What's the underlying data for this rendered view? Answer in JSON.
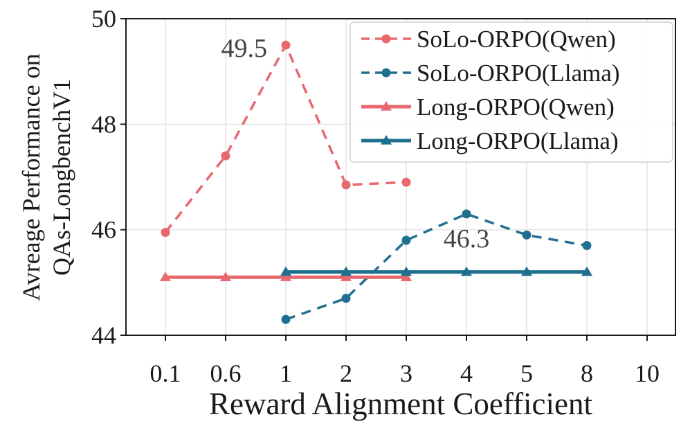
{
  "chart_data": {
    "type": "line",
    "title": "",
    "xlabel": "Reward Alignment Coefficient",
    "ylabel": [
      "Avreage Performance on",
      "QAs-LongbenchV1"
    ],
    "categories": [
      "0.1",
      "0.6",
      "1",
      "2",
      "3",
      "4",
      "5",
      "8",
      "10"
    ],
    "yticks": [
      "44",
      "46",
      "48",
      "50"
    ],
    "ylim": [
      44,
      50
    ],
    "grid": true,
    "legend_position": "top-right",
    "series": [
      {
        "name": "SoLo-ORPO(Qwen)",
        "style": "dashed",
        "marker": "circle",
        "color": "#e8686e",
        "x": [
          "0.1",
          "0.6",
          "1",
          "2",
          "3"
        ],
        "values": [
          45.95,
          47.4,
          49.5,
          46.85,
          46.9
        ]
      },
      {
        "name": "SoLo-ORPO(Llama)",
        "style": "dashed",
        "marker": "circle",
        "color": "#1f6f8f",
        "x": [
          "1",
          "2",
          "3",
          "4",
          "5",
          "8"
        ],
        "values": [
          44.3,
          44.7,
          45.8,
          46.3,
          45.9,
          45.7
        ]
      },
      {
        "name": "Long-ORPO(Qwen)",
        "style": "solid",
        "marker": "triangle",
        "color": "#e8686e",
        "x": [
          "0.1",
          "0.6",
          "1",
          "2",
          "3"
        ],
        "values": [
          45.1,
          45.1,
          45.1,
          45.1,
          45.1
        ]
      },
      {
        "name": "Long-ORPO(Llama)",
        "style": "solid",
        "marker": "triangle",
        "color": "#1f6f8f",
        "x": [
          "1",
          "2",
          "3",
          "4",
          "5",
          "8"
        ],
        "values": [
          45.2,
          45.2,
          45.2,
          45.2,
          45.2,
          45.2
        ]
      }
    ],
    "annotations": [
      {
        "text": "49.5",
        "x": "1",
        "y": 49.5
      },
      {
        "text": "46.3",
        "x": "4",
        "y": 46.3
      }
    ]
  }
}
